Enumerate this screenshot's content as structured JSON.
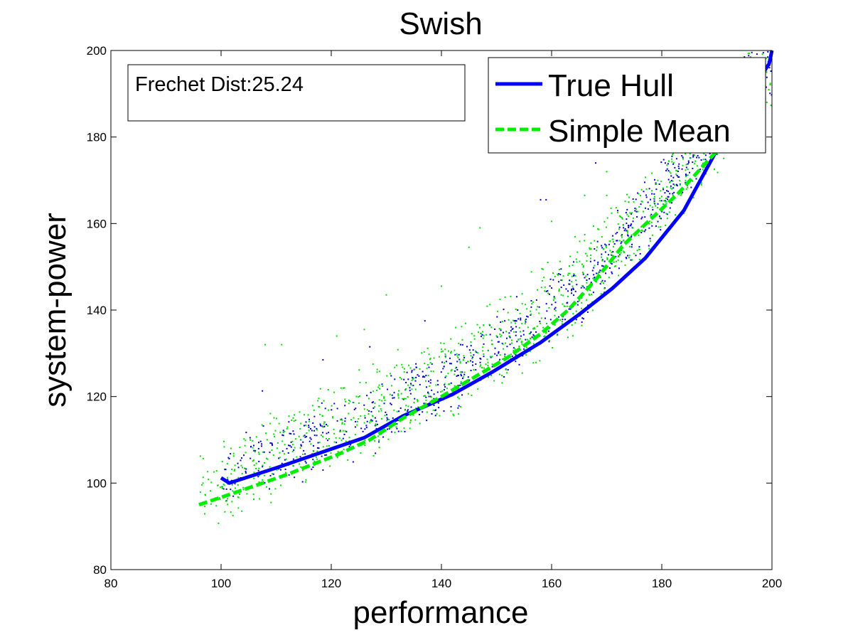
{
  "chart_data": {
    "type": "scatter",
    "title": "Swish",
    "xlabel": "performance",
    "ylabel": "system-power",
    "xlim": [
      80,
      200
    ],
    "ylim": [
      80,
      200
    ],
    "xticks": [
      80,
      100,
      120,
      140,
      160,
      180,
      200
    ],
    "yticks": [
      80,
      100,
      120,
      140,
      160,
      180,
      200
    ],
    "grid": false,
    "legend_position": "top-right",
    "annotation": "Frechet Dist:25.24",
    "series": [
      {
        "name": "True Hull",
        "kind": "line",
        "style": "solid",
        "color": "#0000ff",
        "points": [
          [
            100,
            101.2
          ],
          [
            101.5,
            100
          ],
          [
            110,
            103.5
          ],
          [
            118,
            107
          ],
          [
            126,
            110.5
          ],
          [
            133,
            115.5
          ],
          [
            142,
            120.5
          ],
          [
            149,
            125.5
          ],
          [
            158,
            132.5
          ],
          [
            165,
            139
          ],
          [
            171,
            145
          ],
          [
            177,
            152
          ],
          [
            184,
            163
          ],
          [
            190,
            177
          ],
          [
            193,
            184
          ],
          [
            196,
            190
          ],
          [
            199.5,
            197
          ],
          [
            200,
            200
          ]
        ]
      },
      {
        "name": "Simple Mean",
        "kind": "line",
        "style": "dashed",
        "color": "#00ee00",
        "points": [
          [
            96,
            95
          ],
          [
            103,
            98
          ],
          [
            112,
            102
          ],
          [
            121,
            106.5
          ],
          [
            127,
            110
          ],
          [
            133,
            115
          ],
          [
            140,
            120
          ],
          [
            146,
            124.5
          ],
          [
            152,
            129
          ],
          [
            158,
            134.5
          ],
          [
            163,
            140
          ],
          [
            168,
            147
          ],
          [
            173,
            155
          ],
          [
            178,
            161
          ],
          [
            183,
            167
          ],
          [
            188,
            174
          ],
          [
            193,
            181
          ],
          [
            197,
            188
          ]
        ]
      },
      {
        "kind": "scatter",
        "color": "#0000cc",
        "cloud": {
          "x_range": [
            100,
            200
          ],
          "center_points": [
            [
              102,
              103
            ],
            [
              110,
              107
            ],
            [
              118,
              110
            ],
            [
              126,
              114
            ],
            [
              134,
              119
            ],
            [
              142,
              124.5
            ],
            [
              150,
              131
            ],
            [
              158,
              138.5
            ],
            [
              166,
              146
            ],
            [
              174,
              157
            ],
            [
              182,
              170
            ],
            [
              190,
              183
            ],
            [
              196,
              195
            ]
          ],
          "spread": [
            0,
            9
          ],
          "count": 900,
          "outliers": [
            [
              107.5,
              121.3
            ],
            [
              118.5,
              128.5
            ],
            [
              127,
              131.5
            ],
            [
              137,
              137.5
            ],
            [
              158,
              165.5
            ],
            [
              159,
              165.5
            ],
            [
              168,
              174
            ],
            [
              195,
              198.5
            ],
            [
              172,
              163
            ]
          ]
        }
      },
      {
        "kind": "scatter",
        "color": "#00dd00",
        "cloud": {
          "x_range": [
            96,
            200
          ],
          "center_points": [
            [
              97,
              98
            ],
            [
              104,
              103
            ],
            [
              112,
              107.5
            ],
            [
              120,
              112
            ],
            [
              128,
              117
            ],
            [
              136,
              122
            ],
            [
              144,
              127.5
            ],
            [
              152,
              134
            ],
            [
              160,
              141
            ],
            [
              168,
              150
            ],
            [
              176,
              161
            ],
            [
              184,
              173
            ],
            [
              192,
              186
            ],
            [
              198,
              196
            ]
          ],
          "spread": [
            0,
            12
          ],
          "count": 1100,
          "outliers": [
            [
              108,
              132
            ],
            [
              111,
              132
            ],
            [
              121,
              134
            ],
            [
              126,
              135.5
            ],
            [
              130,
              143.5
            ],
            [
              140,
              145.5
            ],
            [
              145,
              154.5
            ],
            [
              147,
              159
            ],
            [
              160,
              160.5
            ],
            [
              166,
              166.5
            ],
            [
              170,
              166.5
            ],
            [
              174,
              165
            ],
            [
              178,
              178
            ],
            [
              170,
              172
            ]
          ]
        }
      }
    ]
  }
}
